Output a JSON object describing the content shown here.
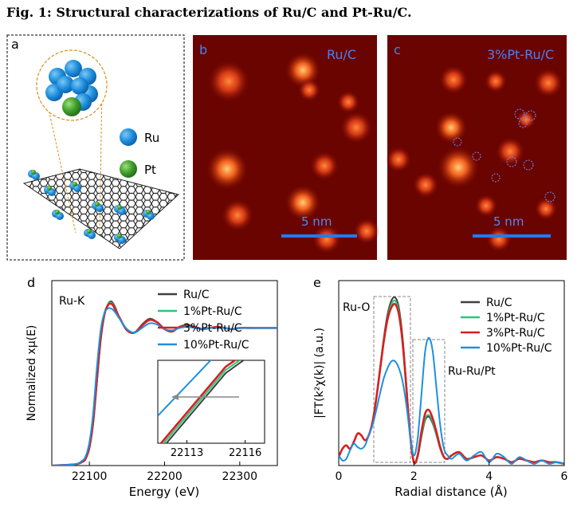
{
  "figure_title": "Fig. 1: Structural characterizations of Ru/C and Pt-Ru/C.",
  "panel_a": {
    "letter": "a",
    "legend": [
      {
        "label": "Ru",
        "color": "#2a8fd8"
      },
      {
        "label": "Pt",
        "color": "#3f9e2a"
      }
    ]
  },
  "panel_b": {
    "letter": "b",
    "label": "Ru/C",
    "scale_label": "5 nm"
  },
  "panel_c": {
    "letter": "c",
    "label": "3%Pt-Ru/C",
    "scale_label": "5 nm"
  },
  "colors": {
    "Ru/C": "#404040",
    "1%Pt-Ru/C": "#2ec27e",
    "3%Pt-Ru/C": "#d62020",
    "10%Pt-Ru/C": "#1e90e0"
  },
  "chart_data": [
    {
      "panel": "d",
      "type": "line",
      "annotation": "Ru-K",
      "xlabel": "Energy (eV)",
      "ylabel": "Normalized xμ(E)",
      "xlim": [
        22050,
        22350
      ],
      "xticks": [
        22100,
        22200,
        22300
      ],
      "ylim": [
        0,
        1.6
      ],
      "legend_position": "top-right",
      "series": [
        {
          "name": "Ru/C",
          "x": [
            22050,
            22080,
            22090,
            22095,
            22100,
            22105,
            22110,
            22115,
            22120,
            22125,
            22128,
            22131,
            22135,
            22140,
            22150,
            22160,
            22170,
            22180,
            22190,
            22200,
            22210,
            22220,
            22230,
            22240,
            22250,
            22260,
            22270,
            22280,
            22290,
            22300,
            22320,
            22350
          ],
          "y": [
            0.0,
            0.01,
            0.03,
            0.06,
            0.15,
            0.36,
            0.72,
            1.08,
            1.3,
            1.4,
            1.42,
            1.41,
            1.36,
            1.28,
            1.17,
            1.15,
            1.22,
            1.27,
            1.24,
            1.18,
            1.16,
            1.2,
            1.22,
            1.2,
            1.18,
            1.19,
            1.2,
            1.19,
            1.18,
            1.19,
            1.19,
            1.19
          ]
        },
        {
          "name": "1%Pt-Ru/C",
          "x": [
            22050,
            22080,
            22090,
            22095,
            22100,
            22105,
            22110,
            22115,
            22120,
            22125,
            22128,
            22131,
            22135,
            22140,
            22150,
            22160,
            22170,
            22180,
            22190,
            22200,
            22210,
            22220,
            22230,
            22240,
            22250,
            22260,
            22270,
            22280,
            22290,
            22300,
            22320,
            22350
          ],
          "y": [
            0.0,
            0.01,
            0.03,
            0.06,
            0.15,
            0.37,
            0.73,
            1.09,
            1.3,
            1.4,
            1.41,
            1.4,
            1.35,
            1.28,
            1.17,
            1.15,
            1.21,
            1.26,
            1.24,
            1.18,
            1.16,
            1.2,
            1.21,
            1.2,
            1.18,
            1.19,
            1.2,
            1.19,
            1.18,
            1.19,
            1.19,
            1.19
          ]
        },
        {
          "name": "3%Pt-Ru/C",
          "x": [
            22050,
            22080,
            22090,
            22095,
            22100,
            22105,
            22110,
            22115,
            22120,
            22125,
            22128,
            22131,
            22135,
            22140,
            22150,
            22160,
            22170,
            22180,
            22190,
            22200,
            22210,
            22220,
            22230,
            22240,
            22250,
            22260,
            22270,
            22280,
            22290,
            22300,
            22320,
            22350
          ],
          "y": [
            0.0,
            0.01,
            0.03,
            0.06,
            0.16,
            0.38,
            0.74,
            1.1,
            1.31,
            1.39,
            1.4,
            1.39,
            1.34,
            1.28,
            1.17,
            1.15,
            1.21,
            1.26,
            1.24,
            1.18,
            1.16,
            1.2,
            1.21,
            1.2,
            1.18,
            1.19,
            1.2,
            1.19,
            1.18,
            1.19,
            1.19,
            1.19
          ]
        },
        {
          "name": "10%Pt-Ru/C",
          "x": [
            22050,
            22080,
            22090,
            22095,
            22100,
            22105,
            22110,
            22115,
            22120,
            22125,
            22128,
            22131,
            22135,
            22140,
            22150,
            22160,
            22170,
            22180,
            22190,
            22200,
            22210,
            22220,
            22230,
            22240,
            22250,
            22260,
            22270,
            22280,
            22290,
            22300,
            22320,
            22350
          ],
          "y": [
            0.0,
            0.01,
            0.04,
            0.08,
            0.2,
            0.45,
            0.85,
            1.17,
            1.32,
            1.36,
            1.36,
            1.35,
            1.32,
            1.27,
            1.18,
            1.15,
            1.19,
            1.23,
            1.22,
            1.18,
            1.17,
            1.19,
            1.2,
            1.19,
            1.18,
            1.19,
            1.19,
            1.19,
            1.18,
            1.19,
            1.19,
            1.19
          ]
        }
      ],
      "inset": {
        "xticks": [
          22113,
          22116
        ],
        "xlim": [
          22111.5,
          22117.0
        ],
        "arrow": "left"
      }
    },
    {
      "panel": "e",
      "type": "line",
      "xlabel": "Radial distance (Å)",
      "ylabel": "|FT(k²χ(k)| (a.u.)",
      "xlim": [
        0,
        6
      ],
      "xticks": [
        0,
        2,
        4,
        6
      ],
      "ylim": [
        0,
        1.1
      ],
      "legend_position": "top-right",
      "annotations": [
        "Ru-O",
        "Ru-Ru/Pt"
      ],
      "series": [
        {
          "name": "Ru/C",
          "x": [
            0.0,
            0.1,
            0.2,
            0.3,
            0.4,
            0.5,
            0.6,
            0.7,
            0.8,
            0.9,
            1.0,
            1.1,
            1.2,
            1.3,
            1.4,
            1.5,
            1.6,
            1.7,
            1.8,
            1.9,
            2.0,
            2.1,
            2.2,
            2.3,
            2.4,
            2.5,
            2.6,
            2.7,
            2.8,
            2.9,
            3.0,
            3.2,
            3.4,
            3.6,
            3.8,
            4.0,
            4.2,
            4.4,
            4.6,
            4.8,
            5.0,
            5.2,
            5.4,
            5.6,
            5.8,
            6.0
          ],
          "y": [
            0.05,
            0.1,
            0.12,
            0.1,
            0.14,
            0.19,
            0.18,
            0.15,
            0.18,
            0.26,
            0.4,
            0.58,
            0.76,
            0.9,
            0.98,
            1.0,
            0.94,
            0.76,
            0.48,
            0.18,
            0.02,
            0.05,
            0.17,
            0.27,
            0.29,
            0.25,
            0.18,
            0.1,
            0.05,
            0.04,
            0.06,
            0.08,
            0.04,
            0.05,
            0.06,
            0.03,
            0.05,
            0.04,
            0.02,
            0.04,
            0.03,
            0.02,
            0.03,
            0.02,
            0.02,
            0.01
          ]
        },
        {
          "name": "1%Pt-Ru/C",
          "x": [
            0.0,
            0.1,
            0.2,
            0.3,
            0.4,
            0.5,
            0.6,
            0.7,
            0.8,
            0.9,
            1.0,
            1.1,
            1.2,
            1.3,
            1.4,
            1.5,
            1.6,
            1.7,
            1.8,
            1.9,
            2.0,
            2.1,
            2.2,
            2.3,
            2.4,
            2.5,
            2.6,
            2.7,
            2.8,
            2.9,
            3.0,
            3.2,
            3.4,
            3.6,
            3.8,
            4.0,
            4.2,
            4.4,
            4.6,
            4.8,
            5.0,
            5.2,
            5.4,
            5.6,
            5.8,
            6.0
          ],
          "y": [
            0.05,
            0.1,
            0.12,
            0.1,
            0.14,
            0.19,
            0.18,
            0.15,
            0.18,
            0.26,
            0.4,
            0.58,
            0.75,
            0.88,
            0.96,
            0.98,
            0.92,
            0.74,
            0.47,
            0.18,
            0.02,
            0.05,
            0.18,
            0.28,
            0.3,
            0.26,
            0.18,
            0.1,
            0.05,
            0.04,
            0.06,
            0.08,
            0.04,
            0.05,
            0.06,
            0.03,
            0.05,
            0.04,
            0.02,
            0.04,
            0.03,
            0.02,
            0.03,
            0.02,
            0.02,
            0.01
          ]
        },
        {
          "name": "3%Pt-Ru/C",
          "x": [
            0.0,
            0.1,
            0.2,
            0.3,
            0.4,
            0.5,
            0.6,
            0.7,
            0.8,
            0.9,
            1.0,
            1.1,
            1.2,
            1.3,
            1.4,
            1.5,
            1.6,
            1.7,
            1.8,
            1.9,
            2.0,
            2.1,
            2.2,
            2.3,
            2.4,
            2.5,
            2.6,
            2.7,
            2.8,
            2.9,
            3.0,
            3.2,
            3.4,
            3.6,
            3.8,
            4.0,
            4.2,
            4.4,
            4.6,
            4.8,
            5.0,
            5.2,
            5.4,
            5.6,
            5.8,
            6.0
          ],
          "y": [
            0.05,
            0.1,
            0.12,
            0.1,
            0.14,
            0.19,
            0.18,
            0.15,
            0.18,
            0.26,
            0.4,
            0.57,
            0.74,
            0.87,
            0.94,
            0.96,
            0.9,
            0.73,
            0.46,
            0.18,
            0.02,
            0.06,
            0.2,
            0.31,
            0.33,
            0.28,
            0.2,
            0.11,
            0.05,
            0.04,
            0.06,
            0.08,
            0.04,
            0.05,
            0.06,
            0.03,
            0.05,
            0.04,
            0.02,
            0.04,
            0.03,
            0.02,
            0.03,
            0.02,
            0.02,
            0.01
          ]
        },
        {
          "name": "10%Pt-Ru/C",
          "x": [
            0.0,
            0.1,
            0.2,
            0.3,
            0.4,
            0.5,
            0.6,
            0.7,
            0.8,
            0.9,
            1.0,
            1.1,
            1.2,
            1.3,
            1.4,
            1.5,
            1.6,
            1.7,
            1.8,
            1.9,
            2.0,
            2.1,
            2.2,
            2.3,
            2.4,
            2.5,
            2.6,
            2.7,
            2.8,
            2.9,
            3.0,
            3.2,
            3.4,
            3.6,
            3.8,
            4.0,
            4.2,
            4.4,
            4.6,
            4.8,
            5.0,
            5.2,
            5.4,
            5.6,
            5.8,
            6.0
          ],
          "y": [
            0.06,
            0.03,
            0.04,
            0.09,
            0.13,
            0.11,
            0.1,
            0.12,
            0.18,
            0.24,
            0.33,
            0.43,
            0.52,
            0.58,
            0.62,
            0.62,
            0.58,
            0.5,
            0.36,
            0.18,
            0.06,
            0.16,
            0.42,
            0.68,
            0.76,
            0.68,
            0.46,
            0.24,
            0.1,
            0.06,
            0.04,
            0.07,
            0.03,
            0.06,
            0.08,
            0.02,
            0.07,
            0.05,
            0.01,
            0.05,
            0.03,
            0.01,
            0.03,
            0.01,
            0.02,
            0.01
          ]
        }
      ]
    }
  ]
}
